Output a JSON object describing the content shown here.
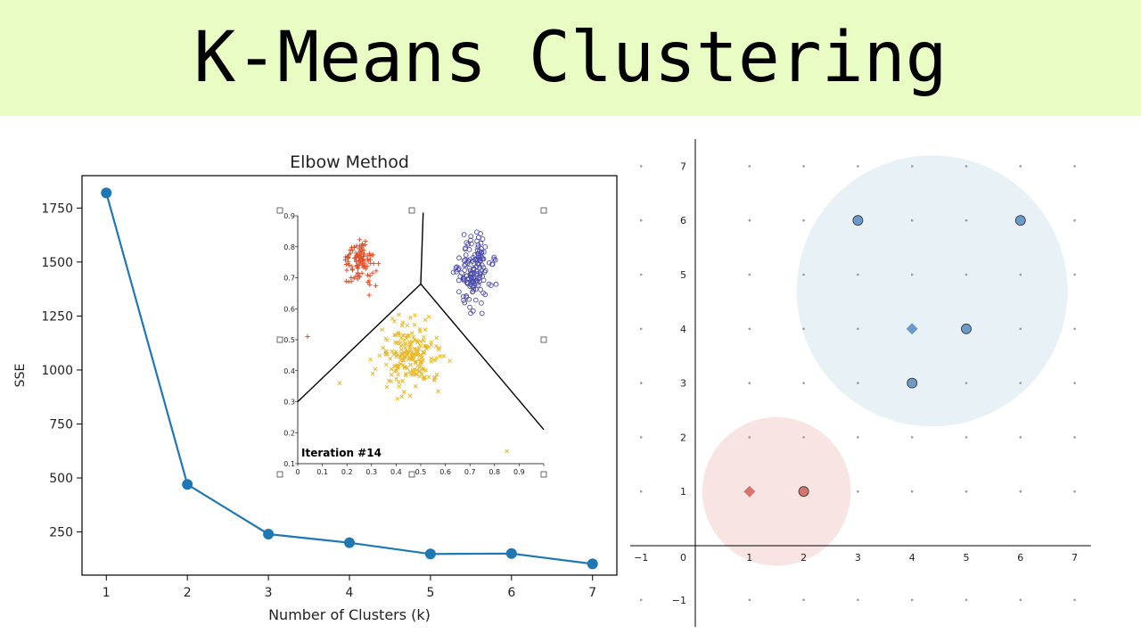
{
  "banner": {
    "title": "K-Means Clustering",
    "background": "#e8fcc4"
  },
  "chart_data": [
    {
      "type": "line",
      "title": "Elbow Method",
      "xlabel": "Number of Clusters (k)",
      "ylabel": "SSE",
      "x": [
        1,
        2,
        3,
        4,
        5,
        6,
        7
      ],
      "series": [
        {
          "values": [
            1820,
            470,
            240,
            200,
            148,
            150,
            102
          ],
          "color": "#1f77b4"
        }
      ],
      "xlim": [
        0.7,
        7.3
      ],
      "ylim": [
        50,
        1900
      ],
      "yticks": [
        250,
        500,
        750,
        1000,
        1250,
        1500,
        1750
      ],
      "xticks": [
        1,
        2,
        3,
        4,
        5,
        6,
        7
      ],
      "grid": false,
      "legend": "none"
    },
    {
      "type": "scatter",
      "annotation": "Iteration #14",
      "xlim": [
        0,
        1
      ],
      "ylim": [
        0.1,
        0.9
      ],
      "xticks": [
        0,
        0.1,
        0.2,
        0.3,
        0.4,
        0.5,
        0.6,
        0.7,
        0.8,
        0.9
      ],
      "yticks": [
        0.1,
        0.2,
        0.3,
        0.4,
        0.5,
        0.6,
        0.7,
        0.8,
        0.9
      ],
      "series": [
        {
          "marker": "plus",
          "color": "#e0502a",
          "center": [
            0.25,
            0.75
          ],
          "spread": [
            0.05,
            0.05
          ],
          "count": 110
        },
        {
          "marker": "circle",
          "color": "#4a4aa8",
          "center": [
            0.72,
            0.72
          ],
          "spread": [
            0.06,
            0.09
          ],
          "count": 150
        },
        {
          "marker": "x",
          "color": "#e8b828",
          "center": [
            0.45,
            0.45
          ],
          "spread": [
            0.1,
            0.1
          ],
          "count": 200
        }
      ],
      "outliers": [
        {
          "marker": "plus",
          "color": "#e0502a",
          "x": 0.04,
          "y": 0.51
        },
        {
          "marker": "x",
          "color": "#e8b828",
          "x": 0.85,
          "y": 0.14
        },
        {
          "marker": "x",
          "color": "#e8b828",
          "x": 0.17,
          "y": 0.36
        }
      ],
      "boundaries": [
        [
          [
            0.5,
            0.68
          ],
          [
            0.51,
            0.91
          ]
        ],
        [
          [
            0.5,
            0.68
          ],
          [
            0.0,
            0.3
          ]
        ],
        [
          [
            0.5,
            0.68
          ],
          [
            1.0,
            0.21
          ]
        ]
      ]
    },
    {
      "type": "scatter",
      "xlim": [
        -1.2,
        7.3
      ],
      "ylim": [
        -1.5,
        7.5
      ],
      "xticks": [
        -1,
        1,
        2,
        3,
        4,
        5,
        6,
        7
      ],
      "yticks": [
        -1,
        1,
        2,
        3,
        4,
        5,
        6,
        7
      ],
      "origin_label": "0",
      "points": [
        {
          "x": 3,
          "y": 6,
          "cluster": "blue"
        },
        {
          "x": 6,
          "y": 6,
          "cluster": "blue"
        },
        {
          "x": 5,
          "y": 4,
          "cluster": "blue"
        },
        {
          "x": 4,
          "y": 3,
          "cluster": "blue"
        },
        {
          "x": 2,
          "y": 1,
          "cluster": "red"
        }
      ],
      "centroids": [
        {
          "x": 4,
          "y": 4,
          "cluster": "blue"
        },
        {
          "x": 1,
          "y": 1,
          "cluster": "red"
        }
      ],
      "clusters": [
        {
          "name": "blue",
          "center": [
            4.37,
            4.7
          ],
          "radius": 2.5,
          "fill": "#e8f2f6",
          "color": "#6c9ac8"
        },
        {
          "name": "red",
          "center": [
            1.5,
            1.0
          ],
          "radius": 1.37,
          "fill": "#f8e4e2",
          "color": "#d87470"
        }
      ]
    }
  ]
}
